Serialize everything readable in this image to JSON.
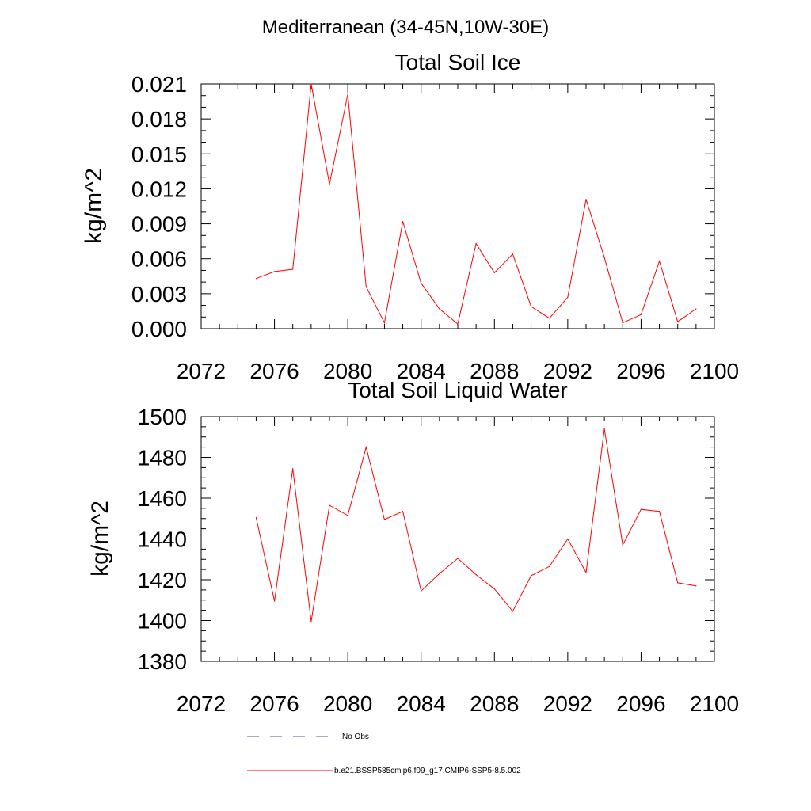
{
  "page_title": "Mediterranean (34-45N,10W-30E)",
  "chart_data": [
    {
      "type": "line",
      "title": "Total Soil Ice",
      "xlabel": "",
      "ylabel": "kg/m^2",
      "xlim": [
        2072,
        2100
      ],
      "ylim": [
        0.0,
        0.021
      ],
      "x_ticks": [
        "2072",
        "2076",
        "2080",
        "2084",
        "2088",
        "2092",
        "2096",
        "2100"
      ],
      "y_ticks": [
        "0.000",
        "0.003",
        "0.006",
        "0.009",
        "0.012",
        "0.015",
        "0.018",
        "0.021"
      ],
      "x": [
        2075,
        2076,
        2077,
        2078,
        2079,
        2080,
        2081,
        2082,
        2083,
        2084,
        2085,
        2086,
        2087,
        2088,
        2089,
        2090,
        2091,
        2092,
        2093,
        2094,
        2095,
        2096,
        2097,
        2098,
        2099
      ],
      "series": [
        {
          "color": "#ff0000",
          "values": [
            0.0043,
            0.0049,
            0.0051,
            0.021,
            0.0124,
            0.0201,
            0.0036,
            0.0005,
            0.0092,
            0.0039,
            0.0017,
            0.0004,
            0.0073,
            0.0048,
            0.0064,
            0.0019,
            0.0009,
            0.0027,
            0.0111,
            0.0061,
            0.0005,
            0.0012,
            0.0058,
            0.0006,
            0.0017
          ]
        }
      ]
    },
    {
      "type": "line",
      "title": "Total Soil Liquid Water",
      "xlabel": "",
      "ylabel": "kg/m^2",
      "xlim": [
        2072,
        2100
      ],
      "ylim": [
        1380,
        1500
      ],
      "x_ticks": [
        "2072",
        "2076",
        "2080",
        "2084",
        "2088",
        "2092",
        "2096",
        "2100"
      ],
      "y_ticks": [
        "1380",
        "1400",
        "1420",
        "1440",
        "1460",
        "1480",
        "1500"
      ],
      "x": [
        2075,
        2076,
        2077,
        2078,
        2079,
        2080,
        2081,
        2082,
        2083,
        2084,
        2085,
        2086,
        2087,
        2088,
        2089,
        2090,
        2091,
        2092,
        2093,
        2094,
        2095,
        2096,
        2097,
        2098,
        2099
      ],
      "series": [
        {
          "color": "#ff0000",
          "values": [
            1450.5,
            1409.5,
            1474.5,
            1399.5,
            1456.5,
            1451.5,
            1485.0,
            1449.5,
            1453.5,
            1414.5,
            1423.0,
            1430.5,
            1422.5,
            1415.5,
            1404.5,
            1422.0,
            1426.5,
            1440.0,
            1423.5,
            1494.0,
            1437.0,
            1454.5,
            1453.5,
            1418.5,
            1417.0
          ]
        }
      ]
    }
  ],
  "legend": [
    {
      "label": "No Obs",
      "color": "#5a5a8c",
      "dash": true
    },
    {
      "label": "b.e21.BSSP585cmip6.f09_g17.CMIP6-SSP5-8.5.002",
      "color": "#ff0000",
      "dash": false
    }
  ]
}
